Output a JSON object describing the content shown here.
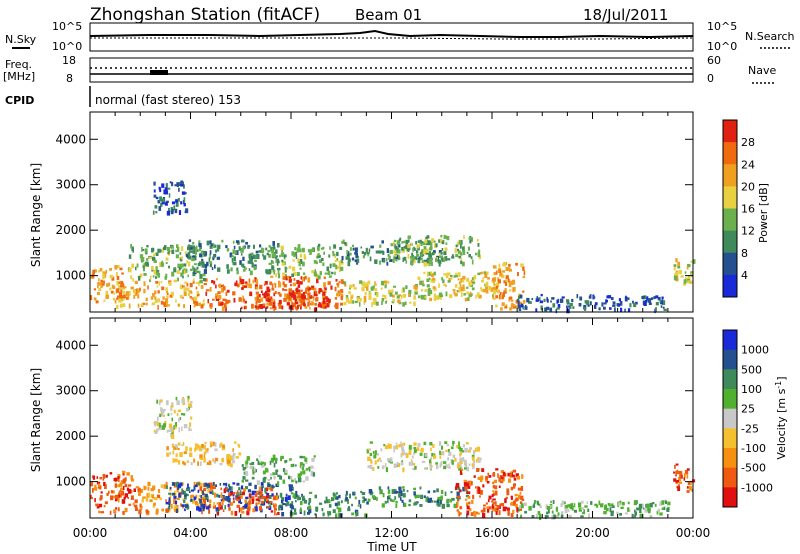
{
  "header": {
    "station": "Zhongshan Station (fitACF)",
    "beam": "Beam 01",
    "date": "18/Jul/2011"
  },
  "housekeeping": {
    "nsky_label": "N.Sky",
    "nsearch_label": "N.Search",
    "noise_ticks": [
      "10^5",
      "10^0"
    ],
    "freq_label": "Freq.",
    "freq_unit": "[MHz]",
    "freq_ticks": [
      "18",
      "8"
    ],
    "nave_label": "Nave",
    "nave_ticks": [
      "60",
      "0"
    ],
    "cpid_label": "CPID",
    "cpid_text": "normal (fast stereo) 153"
  },
  "colors": {
    "power": [
      "#1a2ad8",
      "#24508f",
      "#3f8a5a",
      "#6ab04c",
      "#e8d040",
      "#f0a020",
      "#f06a10",
      "#e02010"
    ],
    "velocity": [
      "#e01010",
      "#f05a10",
      "#f59010",
      "#f5c030",
      "#c8c8c8",
      "#50b030",
      "#3f8a5a",
      "#24508f",
      "#1a2ad8"
    ]
  },
  "chart_data": [
    {
      "type": "heatmap",
      "name": "power",
      "xlabel": "Time UT",
      "ylabel": "Slant Range [km]",
      "x_ticks": [
        "00:00",
        "04:00",
        "08:00",
        "12:00",
        "16:00",
        "20:00",
        "00:00"
      ],
      "y_ticks": [
        1000,
        2000,
        3000,
        4000
      ],
      "xlim_hours": [
        0,
        24
      ],
      "ylim_km": [
        200,
        4600
      ],
      "colorbar": {
        "label": "Power [dB]",
        "ticks": [
          4,
          8,
          12,
          16,
          20,
          24,
          28
        ],
        "range": [
          0,
          32
        ]
      },
      "regions": [
        {
          "t0": 0.0,
          "t1": 1.3,
          "r0": 350,
          "r1": 1250,
          "level": 5
        },
        {
          "t0": 1.0,
          "t1": 4.5,
          "r0": 350,
          "r1": 900,
          "level": 5
        },
        {
          "t0": 4.5,
          "t1": 10.0,
          "r0": 300,
          "r1": 1000,
          "level": 6
        },
        {
          "t0": 6.5,
          "t1": 9.5,
          "r0": 300,
          "r1": 750,
          "level": 7
        },
        {
          "t0": 1.5,
          "t1": 4.5,
          "r0": 900,
          "r1": 1700,
          "level": 3
        },
        {
          "t0": 2.5,
          "t1": 3.8,
          "r0": 2400,
          "r1": 3100,
          "level": 1
        },
        {
          "t0": 3.8,
          "t1": 7.5,
          "r0": 1100,
          "r1": 1800,
          "level": 2
        },
        {
          "t0": 7.0,
          "t1": 10.0,
          "r0": 1000,
          "r1": 1700,
          "level": 3
        },
        {
          "t0": 10.0,
          "t1": 13.0,
          "r0": 400,
          "r1": 900,
          "level": 4
        },
        {
          "t0": 10.0,
          "t1": 14.0,
          "r0": 1300,
          "r1": 1800,
          "level": 2
        },
        {
          "t0": 12.0,
          "t1": 15.5,
          "r0": 1300,
          "r1": 1900,
          "level": 3
        },
        {
          "t0": 13.0,
          "t1": 16.0,
          "r0": 500,
          "r1": 1100,
          "level": 4
        },
        {
          "t0": 16.0,
          "t1": 17.3,
          "r0": 300,
          "r1": 1300,
          "level": 5
        },
        {
          "t0": 17.0,
          "t1": 23.0,
          "r0": 250,
          "r1": 600,
          "level": 1
        },
        {
          "t0": 23.2,
          "t1": 24.0,
          "r0": 800,
          "r1": 1400,
          "level": 4
        }
      ]
    },
    {
      "type": "heatmap",
      "name": "velocity",
      "xlabel": "Time UT",
      "ylabel": "Slant Range [km]",
      "x_ticks": [
        "00:00",
        "04:00",
        "08:00",
        "12:00",
        "16:00",
        "20:00",
        "00:00"
      ],
      "y_ticks": [
        1000,
        2000,
        3000,
        4000
      ],
      "xlim_hours": [
        0,
        24
      ],
      "ylim_km": [
        200,
        4600
      ],
      "colorbar": {
        "label": "Velocity [m s^-1]",
        "ticks": [
          "1000",
          "500",
          "100",
          "25",
          "-25",
          "-100",
          "-500",
          "-1000"
        ]
      },
      "regions": [
        {
          "t0": 0.0,
          "t1": 2.0,
          "r0": 350,
          "r1": 1250,
          "level": 1
        },
        {
          "t0": 2.0,
          "t1": 5.0,
          "r0": 350,
          "r1": 1000,
          "level": 2
        },
        {
          "t0": 3.0,
          "t1": 8.0,
          "r0": 400,
          "r1": 1000,
          "level": 7
        },
        {
          "t0": 5.0,
          "t1": 7.5,
          "r0": 300,
          "r1": 900,
          "level": 1
        },
        {
          "t0": 7.5,
          "t1": 11.0,
          "r0": 300,
          "r1": 800,
          "level": 6
        },
        {
          "t0": 2.5,
          "t1": 4.0,
          "r0": 2000,
          "r1": 2900,
          "level": 4
        },
        {
          "t0": 3.0,
          "t1": 6.0,
          "r0": 1400,
          "r1": 1900,
          "level": 3
        },
        {
          "t0": 6.0,
          "t1": 9.0,
          "r0": 1000,
          "r1": 1600,
          "level": 5
        },
        {
          "t0": 11.0,
          "t1": 15.5,
          "r0": 1300,
          "r1": 1900,
          "level": 4
        },
        {
          "t0": 11.0,
          "t1": 15.0,
          "r0": 500,
          "r1": 900,
          "level": 6
        },
        {
          "t0": 14.5,
          "t1": 17.2,
          "r0": 300,
          "r1": 1300,
          "level": 1
        },
        {
          "t0": 17.0,
          "t1": 23.0,
          "r0": 250,
          "r1": 600,
          "level": 5
        },
        {
          "t0": 23.2,
          "t1": 24.0,
          "r0": 800,
          "r1": 1400,
          "level": 1
        }
      ]
    }
  ]
}
